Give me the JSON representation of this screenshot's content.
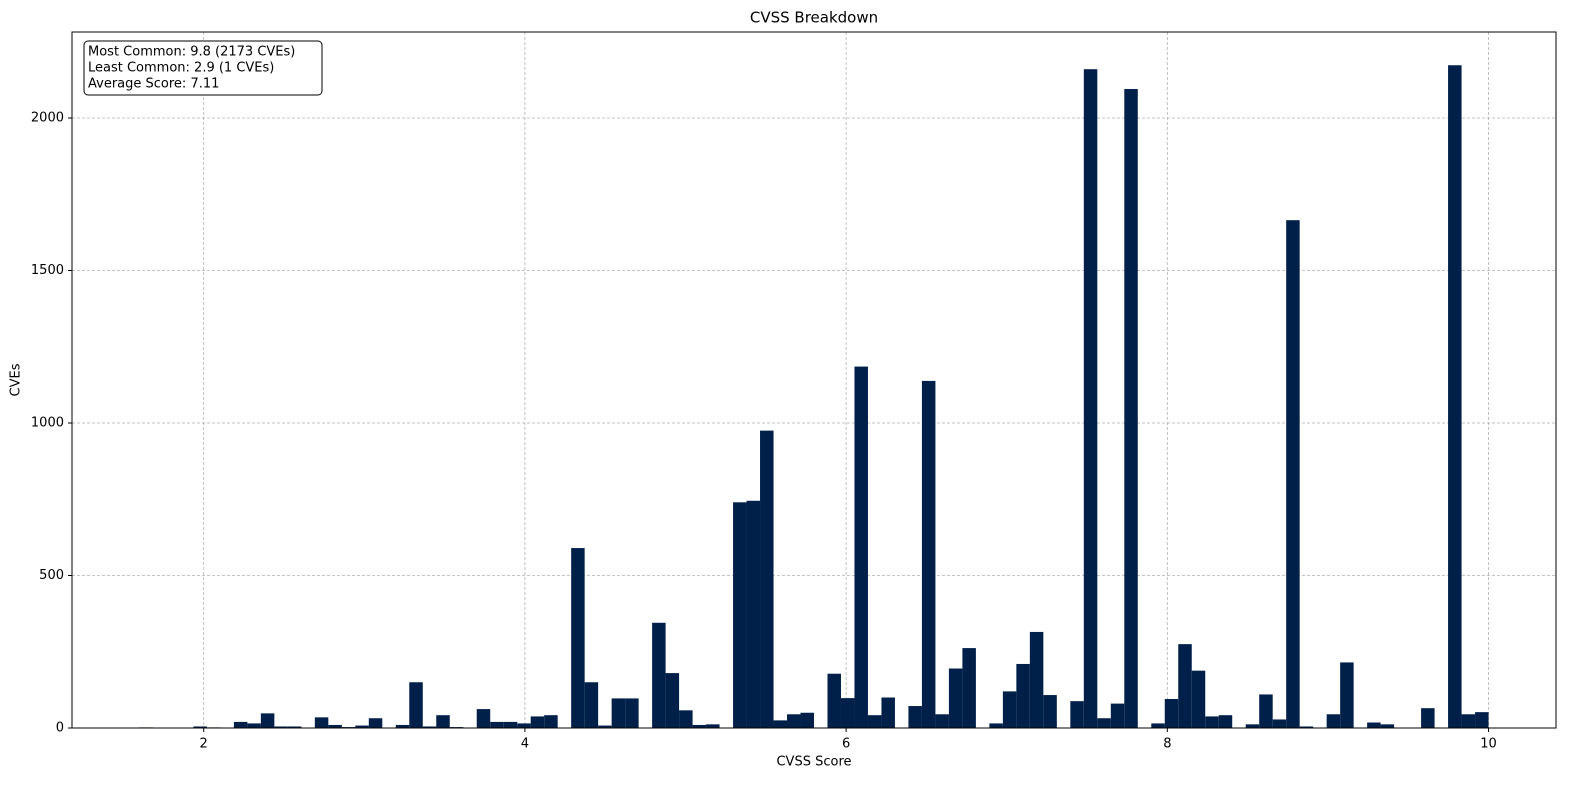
{
  "chart_data": {
    "type": "histogram",
    "title": "CVSS Breakdown",
    "xlabel": "CVSS Score",
    "ylabel": "CVEs",
    "annotation": [
      "Most Common: 9.8 (2173 CVEs)",
      "Least Common: 2.9 (1 CVEs)",
      "Average Score: 7.11"
    ],
    "bins": [
      1.6,
      1.684,
      1.768,
      1.852,
      1.936,
      2.02,
      2.104,
      2.188,
      2.272,
      2.356,
      2.44,
      2.524,
      2.608,
      2.692,
      2.776,
      2.86,
      2.944,
      3.028,
      3.112,
      3.196,
      3.28,
      3.364,
      3.448,
      3.532,
      3.616,
      3.7,
      3.784,
      3.868,
      3.952,
      4.036,
      4.12,
      4.204,
      4.288,
      4.372,
      4.456,
      4.54,
      4.624,
      4.708,
      4.792,
      4.876,
      4.96,
      5.044,
      5.128,
      5.212,
      5.296,
      5.38,
      5.464,
      5.548,
      5.632,
      5.716,
      5.8,
      5.884,
      5.968,
      6.052,
      6.136,
      6.22,
      6.304,
      6.388,
      6.472,
      6.556,
      6.64,
      6.724,
      6.808,
      6.892,
      6.976,
      7.06,
      7.144,
      7.228,
      7.312,
      7.396,
      7.48,
      7.564,
      7.648,
      7.732,
      7.816,
      7.9,
      7.984,
      8.068,
      8.152,
      8.236,
      8.32,
      8.404,
      8.488,
      8.572,
      8.656,
      8.74,
      8.824,
      8.908,
      8.992,
      9.076,
      9.16,
      9.244,
      9.328,
      9.412,
      9.496,
      9.58,
      9.664,
      9.748,
      9.832,
      9.916,
      10.0
    ],
    "values": [
      2,
      0,
      0,
      0,
      5,
      2,
      0,
      20,
      15,
      48,
      5,
      5,
      0,
      35,
      10,
      3,
      8,
      32,
      0,
      10,
      150,
      5,
      42,
      3,
      0,
      62,
      20,
      20,
      15,
      38,
      42,
      0,
      590,
      150,
      8,
      97,
      97,
      0,
      345,
      180,
      58,
      10,
      12,
      0,
      740,
      745,
      975,
      25,
      45,
      50,
      0,
      178,
      98,
      1185,
      42,
      100,
      0,
      72,
      1138,
      45,
      195,
      262,
      0,
      15,
      120,
      210,
      315,
      108,
      0,
      88,
      2160,
      32,
      80,
      2095,
      0,
      15,
      95,
      275,
      188,
      38,
      42,
      0,
      12,
      110,
      28,
      1665,
      5,
      0,
      45,
      215,
      0,
      18,
      12,
      0,
      0,
      65,
      0,
      2173,
      45,
      52
    ],
    "color": "#00204a",
    "xlim": [
      1.18,
      10.42
    ],
    "ylim": [
      0,
      2282
    ],
    "xticks": [
      2,
      4,
      6,
      8,
      10
    ],
    "yticks": [
      0,
      500,
      1000,
      1500,
      2000
    ],
    "grid": true
  }
}
